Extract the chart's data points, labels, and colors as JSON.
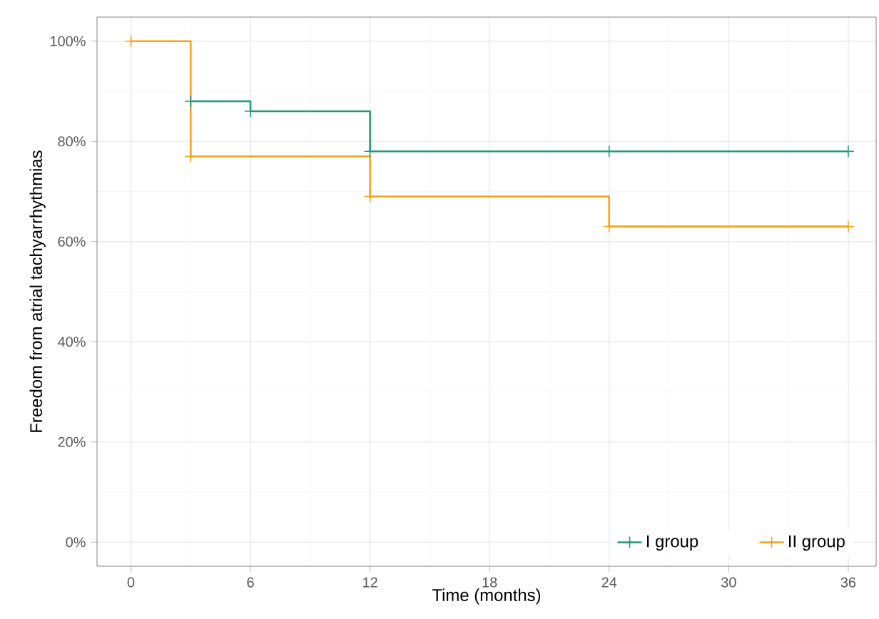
{
  "chart_data": {
    "type": "step",
    "xlabel": "Time (months)",
    "ylabel": "Freedom from atrial tachyarrhythmias",
    "series": [
      {
        "name": "I group",
        "color": "#1b9e77",
        "x": [
          3,
          6,
          12,
          24,
          36
        ],
        "values": [
          88,
          86,
          78,
          78,
          78
        ]
      },
      {
        "name": "II group",
        "color": "#f5a31a",
        "x": [
          0,
          3,
          12,
          24,
          36
        ],
        "values": [
          100,
          77,
          69,
          63,
          63
        ]
      }
    ],
    "xlim": [
      -1.7,
      37.4
    ],
    "ylim": [
      -4.8,
      104.8
    ],
    "xticks": [
      0,
      6,
      12,
      18,
      24,
      30,
      36
    ],
    "yticks": [
      {
        "value": 0,
        "label": "0%"
      },
      {
        "value": 20,
        "label": "20%"
      },
      {
        "value": 40,
        "label": "40%"
      },
      {
        "value": 60,
        "label": "60%"
      },
      {
        "value": 80,
        "label": "80%"
      },
      {
        "value": 100,
        "label": "100%"
      }
    ],
    "grid": true,
    "legend": "bottom right",
    "marker": "cross",
    "line_style": "solid"
  }
}
